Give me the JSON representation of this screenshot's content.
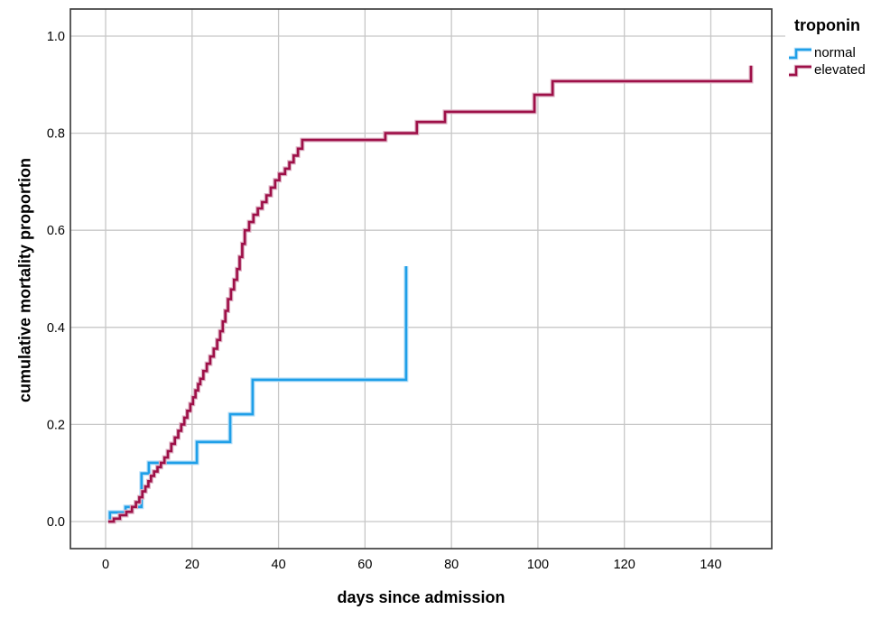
{
  "chart_data": {
    "type": "line",
    "subtype": "step",
    "title": "",
    "xlabel": "days since admission",
    "ylabel": "cumulative mortality proportion",
    "xlim": [
      -8.15,
      154.1
    ],
    "ylim": [
      -0.0558,
      1.0558
    ],
    "grid": true,
    "grid_color": "#c7c7c7",
    "frame_color": "#3f3f3f",
    "x_ticks": [
      {
        "label": "0",
        "value": 0
      },
      {
        "label": "20",
        "value": 20
      },
      {
        "label": "40",
        "value": 40
      },
      {
        "label": "60",
        "value": 60
      },
      {
        "label": "80",
        "value": 80
      },
      {
        "label": "100",
        "value": 100
      },
      {
        "label": "120",
        "value": 120
      },
      {
        "label": "140",
        "value": 140
      }
    ],
    "y_ticks": [
      {
        "label": "0.0",
        "value": 0.0
      },
      {
        "label": "0.2",
        "value": 0.2
      },
      {
        "label": "0.4",
        "value": 0.4
      },
      {
        "label": "0.6",
        "value": 0.6
      },
      {
        "label": "0.8",
        "value": 0.8
      },
      {
        "label": "1.0",
        "value": 1.0
      }
    ],
    "legend_title": "troponin",
    "legend_position": "top-right-outside",
    "series": [
      {
        "name": "normal",
        "color": "#1f9fe8",
        "halo_color": "#b5def7",
        "points": [
          [
            1,
            0
          ],
          [
            1,
            0.019
          ],
          [
            4.6,
            0.03
          ],
          [
            8.3,
            0.099
          ],
          [
            10,
            0.121
          ],
          [
            21.1,
            0.164
          ],
          [
            28.8,
            0.221
          ],
          [
            34,
            0.292
          ],
          [
            69.5,
            0.526
          ]
        ]
      },
      {
        "name": "elevated",
        "color": "#9e1048",
        "halo_color": "#dfb4c6",
        "points": [
          [
            0.6,
            0
          ],
          [
            1.9,
            0.006
          ],
          [
            3.3,
            0.013
          ],
          [
            4.8,
            0.02
          ],
          [
            6.1,
            0.03
          ],
          [
            7,
            0.04
          ],
          [
            7.8,
            0.05
          ],
          [
            8.5,
            0.062
          ],
          [
            9.2,
            0.072
          ],
          [
            9.9,
            0.083
          ],
          [
            10.5,
            0.094
          ],
          [
            11.2,
            0.103
          ],
          [
            12,
            0.112
          ],
          [
            12.8,
            0.121
          ],
          [
            13.6,
            0.132
          ],
          [
            14.4,
            0.145
          ],
          [
            15.2,
            0.16
          ],
          [
            16,
            0.173
          ],
          [
            16.8,
            0.187
          ],
          [
            17.5,
            0.2
          ],
          [
            18.2,
            0.214
          ],
          [
            18.9,
            0.228
          ],
          [
            19.6,
            0.242
          ],
          [
            20.2,
            0.256
          ],
          [
            20.8,
            0.27
          ],
          [
            21.4,
            0.283
          ],
          [
            21.9,
            0.294
          ],
          [
            22.6,
            0.31
          ],
          [
            23.4,
            0.325
          ],
          [
            24.2,
            0.34
          ],
          [
            25,
            0.356
          ],
          [
            25.8,
            0.374
          ],
          [
            26.5,
            0.392
          ],
          [
            27.1,
            0.412
          ],
          [
            27.7,
            0.434
          ],
          [
            28.3,
            0.458
          ],
          [
            29,
            0.478
          ],
          [
            29.7,
            0.498
          ],
          [
            30.4,
            0.52
          ],
          [
            31,
            0.545
          ],
          [
            31.6,
            0.572
          ],
          [
            32.2,
            0.6
          ],
          [
            33.2,
            0.617
          ],
          [
            34.2,
            0.632
          ],
          [
            35.2,
            0.645
          ],
          [
            36.2,
            0.658
          ],
          [
            37.2,
            0.672
          ],
          [
            38.2,
            0.688
          ],
          [
            39.2,
            0.703
          ],
          [
            40.2,
            0.716
          ],
          [
            41.5,
            0.727
          ],
          [
            42.5,
            0.74
          ],
          [
            43.5,
            0.754
          ],
          [
            44.5,
            0.768
          ],
          [
            45.5,
            0.786
          ],
          [
            64.7,
            0.8
          ],
          [
            72,
            0.823
          ],
          [
            78.5,
            0.844
          ],
          [
            99.2,
            0.879
          ],
          [
            103.4,
            0.907
          ],
          [
            149.3,
            0.939
          ]
        ]
      }
    ]
  },
  "colors": {
    "background": "#ffffff",
    "text": "#000000"
  }
}
